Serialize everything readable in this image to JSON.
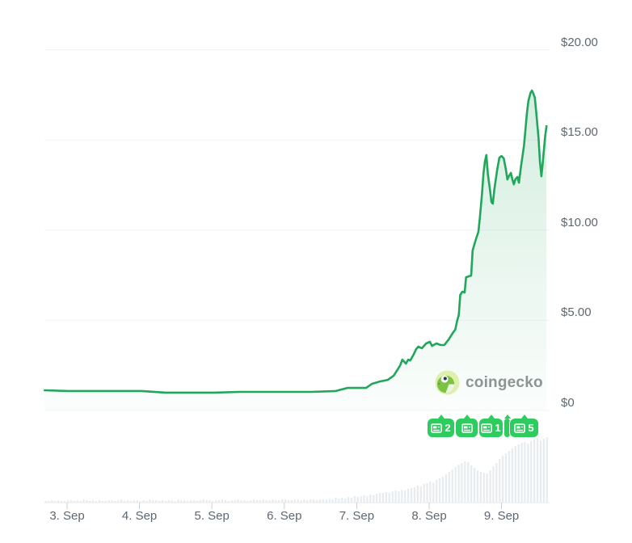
{
  "watermark": {
    "brand": "coingecko"
  },
  "colors": {
    "line": "#21a65c",
    "fill_top": "rgba(33,166,92,0.22)",
    "fill_bottom": "rgba(33,166,92,0.02)",
    "marker_green": "#2ecc5e",
    "volume_bar": "#e8ecef",
    "grid": "#f2f3f5",
    "axis_text": "#5c6874",
    "axis_line": "#e7eaec",
    "tick": "#c9ced3"
  },
  "chart_data": {
    "type": "line",
    "title": "",
    "legend": "none",
    "grid": "horizontal",
    "y_axis": {
      "position": "right",
      "unit": "USD",
      "lim": [
        0,
        20
      ],
      "ticks": [
        {
          "label": "$20.00",
          "value": 20
        },
        {
          "label": "$15.00",
          "value": 15
        },
        {
          "label": "$10.00",
          "value": 10
        },
        {
          "label": "$5.00",
          "value": 5
        },
        {
          "label": "$0",
          "value": 0
        }
      ]
    },
    "x_axis": {
      "unit": "day of September",
      "ticks": [
        {
          "label": "3. Sep",
          "value": 3
        },
        {
          "label": "4. Sep",
          "value": 4
        },
        {
          "label": "5. Sep",
          "value": 5
        },
        {
          "label": "6. Sep",
          "value": 6
        },
        {
          "label": "7. Sep",
          "value": 7
        },
        {
          "label": "8. Sep",
          "value": 8
        },
        {
          "label": "9. Sep",
          "value": 9
        }
      ]
    },
    "price_series": {
      "name": "price_usd",
      "points": [
        [
          2.69,
          1.12
        ],
        [
          3.02,
          1.08
        ],
        [
          3.36,
          1.08
        ],
        [
          3.69,
          1.08
        ],
        [
          4.03,
          1.08
        ],
        [
          4.36,
          0.99
        ],
        [
          4.7,
          0.99
        ],
        [
          5.03,
          0.99
        ],
        [
          5.37,
          1.03
        ],
        [
          5.7,
          1.03
        ],
        [
          6.04,
          1.03
        ],
        [
          6.37,
          1.03
        ],
        [
          6.71,
          1.08
        ],
        [
          6.87,
          1.25
        ],
        [
          7.13,
          1.25
        ],
        [
          7.21,
          1.48
        ],
        [
          7.32,
          1.61
        ],
        [
          7.43,
          1.7
        ],
        [
          7.51,
          1.93
        ],
        [
          7.56,
          2.24
        ],
        [
          7.6,
          2.51
        ],
        [
          7.63,
          2.82
        ],
        [
          7.68,
          2.6
        ],
        [
          7.71,
          2.82
        ],
        [
          7.74,
          2.78
        ],
        [
          7.79,
          3.14
        ],
        [
          7.82,
          3.4
        ],
        [
          7.85,
          3.54
        ],
        [
          7.9,
          3.45
        ],
        [
          7.96,
          3.72
        ],
        [
          8.01,
          3.81
        ],
        [
          8.04,
          3.58
        ],
        [
          8.1,
          3.72
        ],
        [
          8.16,
          3.63
        ],
        [
          8.21,
          3.63
        ],
        [
          8.27,
          3.94
        ],
        [
          8.32,
          4.26
        ],
        [
          8.36,
          4.48
        ],
        [
          8.39,
          5.02
        ],
        [
          8.41,
          5.29
        ],
        [
          8.43,
          6.41
        ],
        [
          8.46,
          6.59
        ],
        [
          8.49,
          6.54
        ],
        [
          8.51,
          7.39
        ],
        [
          8.55,
          7.44
        ],
        [
          8.58,
          7.48
        ],
        [
          8.6,
          8.87
        ],
        [
          8.64,
          9.41
        ],
        [
          8.68,
          9.9
        ],
        [
          8.7,
          10.66
        ],
        [
          8.73,
          12.01
        ],
        [
          8.75,
          13.13
        ],
        [
          8.77,
          13.8
        ],
        [
          8.79,
          14.16
        ],
        [
          8.81,
          13.13
        ],
        [
          8.84,
          12.23
        ],
        [
          8.86,
          11.56
        ],
        [
          8.88,
          11.47
        ],
        [
          8.9,
          12.23
        ],
        [
          8.94,
          13.35
        ],
        [
          8.97,
          14.02
        ],
        [
          9.0,
          14.11
        ],
        [
          9.03,
          13.98
        ],
        [
          9.06,
          13.35
        ],
        [
          9.08,
          12.81
        ],
        [
          9.1,
          12.99
        ],
        [
          9.13,
          13.17
        ],
        [
          9.15,
          12.81
        ],
        [
          9.17,
          12.54
        ],
        [
          9.19,
          12.81
        ],
        [
          9.22,
          12.95
        ],
        [
          9.24,
          12.63
        ],
        [
          9.27,
          13.58
        ],
        [
          9.31,
          14.7
        ],
        [
          9.33,
          15.59
        ],
        [
          9.35,
          16.49
        ],
        [
          9.37,
          17.16
        ],
        [
          9.4,
          17.61
        ],
        [
          9.42,
          17.74
        ],
        [
          9.44,
          17.56
        ],
        [
          9.46,
          17.34
        ],
        [
          9.48,
          16.49
        ],
        [
          9.51,
          15.14
        ],
        [
          9.53,
          13.8
        ],
        [
          9.55,
          12.99
        ],
        [
          9.57,
          13.8
        ],
        [
          9.6,
          15.14
        ],
        [
          9.62,
          15.77
        ]
      ]
    },
    "volume_series": {
      "name": "volume_relative",
      "values": [
        2,
        2,
        3,
        2,
        3,
        2,
        2,
        3,
        3,
        2,
        3,
        2,
        4,
        3,
        2,
        3,
        2,
        3,
        2,
        2,
        3,
        3,
        2,
        3,
        4,
        2,
        3,
        2,
        3,
        3,
        2,
        3,
        2,
        4,
        3,
        3,
        2,
        3,
        2,
        3,
        3,
        2,
        4,
        3,
        3,
        2,
        3,
        3,
        2,
        3,
        4,
        3,
        3,
        2,
        3,
        3,
        4,
        3,
        2,
        3,
        3,
        4,
        3,
        3,
        2,
        3,
        4,
        3,
        3,
        4,
        3,
        3,
        4,
        3,
        3,
        4,
        4,
        3,
        3,
        4,
        4,
        3,
        4,
        3,
        4,
        4,
        3,
        4,
        4,
        4,
        5,
        4,
        6,
        5,
        6,
        5,
        7,
        6,
        8,
        7,
        8,
        9,
        8,
        10,
        9,
        11,
        12,
        12,
        13,
        12,
        14,
        15,
        14,
        16,
        15,
        17,
        18,
        19,
        21,
        20,
        23,
        24,
        26,
        25,
        28,
        30,
        32,
        35,
        38,
        41,
        44,
        47,
        49,
        51,
        50,
        46,
        43,
        40,
        38,
        37,
        36,
        40,
        45,
        49,
        54,
        58,
        61,
        64,
        67,
        70,
        72,
        74,
        75,
        73,
        76,
        78,
        80,
        77,
        79,
        81
      ]
    },
    "news_markers": [
      {
        "count": "2"
      },
      {
        "count": ""
      },
      {
        "count": "1"
      },
      {
        "count": ""
      },
      {
        "count": "5"
      }
    ]
  }
}
